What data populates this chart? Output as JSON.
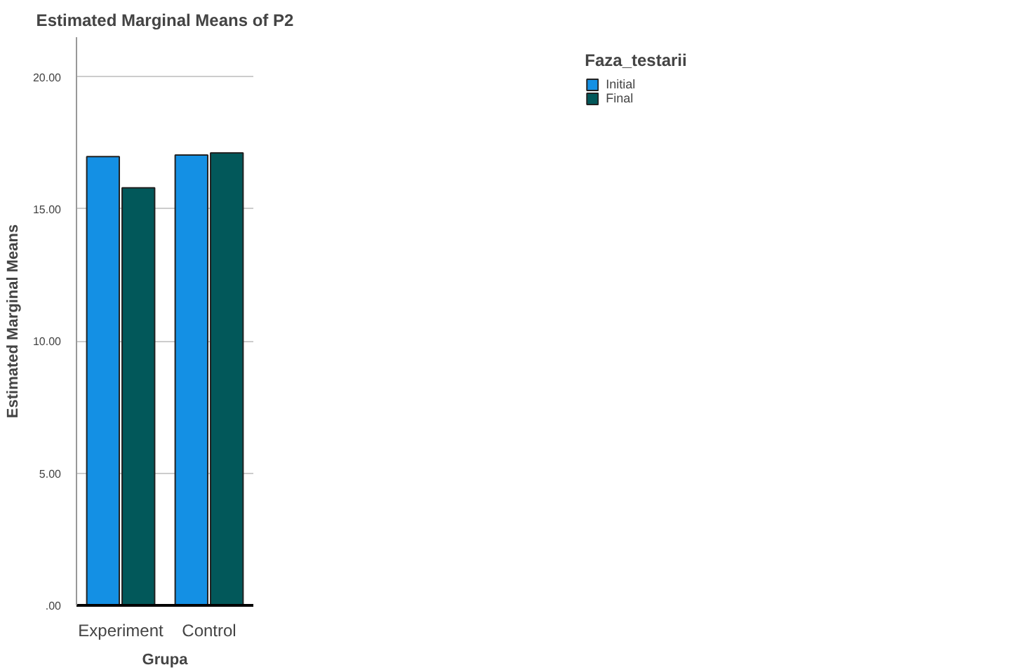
{
  "chart_data": {
    "type": "bar",
    "title": "Estimated Marginal Means of P2",
    "xlabel": "Grupa",
    "ylabel": "Estimated Marginal Means",
    "legend_title": "Faza_testarii",
    "categories": [
      "Experiment",
      "Control"
    ],
    "series": [
      {
        "name": "Initial",
        "color": "#1490e4",
        "values": [
          16.98,
          17.04
        ]
      },
      {
        "name": "Final",
        "color": "#02585a",
        "values": [
          15.8,
          17.12
        ]
      }
    ],
    "ylim": [
      0,
      21.5
    ],
    "yticks": [
      {
        "value": 0,
        "label": ".00"
      },
      {
        "value": 5,
        "label": "5.00"
      },
      {
        "value": 10,
        "label": "10.00"
      },
      {
        "value": 15,
        "label": "15.00"
      },
      {
        "value": 20,
        "label": "20.00"
      }
    ],
    "grid": "y",
    "legend": "top right"
  }
}
